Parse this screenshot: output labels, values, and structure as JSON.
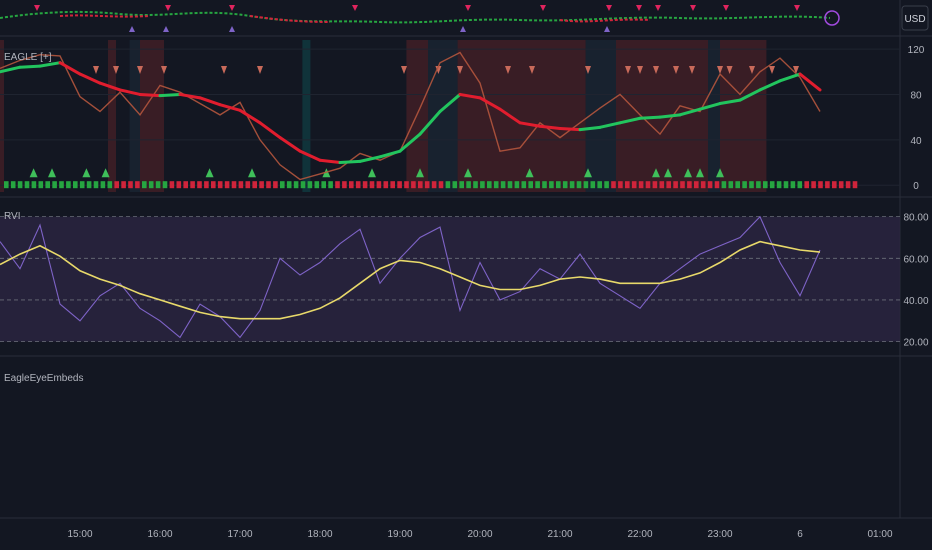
{
  "currency_button": "USD",
  "panes": {
    "eagle_label": "EAGLE [+]",
    "rvi_label": "RVI",
    "embeds_label": "EagleEyeEmbeds"
  },
  "axes": {
    "eagle_ticks": [
      "120",
      "80",
      "40",
      "0"
    ],
    "rvi_ticks": [
      "80.00",
      "60.00",
      "40.00",
      "20.00"
    ],
    "time_ticks": [
      "15:00",
      "16:00",
      "17:00",
      "18:00",
      "19:00",
      "20:00",
      "21:00",
      "22:00",
      "23:00",
      "6",
      "01:00"
    ]
  },
  "colors": {
    "background": "#131722",
    "green_line": "#22c55e",
    "red_line": "#e11d2e",
    "rvi_line": "#e8d96a",
    "rvi_osc": "#7e63c7",
    "rvi_band": "#2a2540",
    "bar_green": "#26a641",
    "bar_red": "#d0243b",
    "shade_red": "#5a2228",
    "shade_dark": "#1d2b3a",
    "shade_teal": "#0f4a4f",
    "marker_salmon": "#c86a5a",
    "marker_green": "#3fbf5a"
  },
  "chart_data": [
    {
      "type": "line",
      "title": "EAGLE [+]",
      "x_unit": "hours (14.5 = 14:30; 24 = day 6 00:00)",
      "ylim": [
        -6,
        128
      ],
      "series": [
        {
          "role": "smooth line, green rising / red falling",
          "x": [
            14.0,
            14.25,
            14.5,
            14.75,
            15.0,
            15.25,
            15.5,
            15.75,
            16.0,
            16.25,
            16.5,
            16.75,
            17.0,
            17.25,
            17.5,
            17.75,
            18.0,
            18.25,
            18.5,
            18.75,
            19.0,
            19.25,
            19.5,
            19.75,
            20.0,
            20.25,
            20.5,
            20.75,
            21.0,
            21.25,
            21.5,
            21.75,
            22.0,
            22.25,
            22.5,
            22.75,
            23.0,
            23.25,
            23.5,
            23.75,
            24.0,
            24.25
          ],
          "y": [
            100,
            104,
            105,
            108,
            98,
            90,
            84,
            80,
            79,
            80,
            77,
            71,
            66,
            55,
            42,
            30,
            22,
            20,
            21,
            25,
            30,
            45,
            65,
            80,
            77,
            67,
            55,
            52,
            50,
            49,
            51,
            55,
            59,
            60,
            62,
            67,
            72,
            75,
            84,
            92,
            98,
            84
          ]
        },
        {
          "role": "thin signal line",
          "x": [
            14.0,
            14.25,
            14.5,
            14.75,
            15.0,
            15.25,
            15.5,
            15.75,
            16.0,
            16.25,
            16.5,
            16.75,
            17.0,
            17.25,
            17.5,
            17.75,
            18.0,
            18.25,
            18.5,
            18.75,
            19.0,
            19.25,
            19.5,
            19.75,
            20.0,
            20.25,
            20.5,
            20.75,
            21.0,
            21.25,
            21.5,
            21.75,
            22.0,
            22.25,
            22.5,
            22.75,
            23.0,
            23.25,
            23.5,
            23.75,
            24.0,
            24.25
          ],
          "y": [
            103,
            110,
            115,
            114,
            78,
            65,
            82,
            62,
            88,
            82,
            72,
            62,
            73,
            40,
            18,
            5,
            10,
            15,
            28,
            22,
            30,
            68,
            108,
            117,
            90,
            30,
            33,
            55,
            42,
            55,
            68,
            80,
            62,
            45,
            70,
            65,
            98,
            80,
            100,
            112,
            95,
            65
          ]
        }
      ],
      "bar_colors_left_to_right": [
        "green",
        "green",
        "green",
        "green",
        "green",
        "green",
        "green",
        "green",
        "green",
        "green",
        "green",
        "green",
        "green",
        "green",
        "green",
        "green",
        "red",
        "red",
        "red",
        "red",
        "green",
        "green",
        "green",
        "green",
        "red",
        "red",
        "red",
        "red",
        "red",
        "red",
        "red",
        "red",
        "red",
        "red",
        "red",
        "red",
        "red",
        "red",
        "red",
        "red",
        "green",
        "green",
        "green",
        "green",
        "green",
        "green",
        "green",
        "green",
        "red",
        "red",
        "red",
        "red",
        "red",
        "red",
        "red",
        "red",
        "red",
        "red",
        "red",
        "red",
        "red",
        "red",
        "red",
        "red",
        "green",
        "green",
        "green",
        "green",
        "green",
        "green",
        "green",
        "green",
        "green",
        "green",
        "green",
        "green",
        "green",
        "green",
        "green",
        "green",
        "green",
        "green",
        "green",
        "green",
        "green",
        "green",
        "green",
        "green",
        "red",
        "red",
        "red",
        "red",
        "red",
        "red",
        "red",
        "red",
        "red",
        "red",
        "red",
        "red",
        "red",
        "red",
        "red",
        "red",
        "green",
        "green",
        "green",
        "green",
        "green",
        "green",
        "green",
        "green",
        "green",
        "green",
        "green",
        "green",
        "red",
        "red",
        "red",
        "red",
        "red",
        "red",
        "red",
        "red"
      ],
      "shaded_spans": [
        {
          "from": 14.0,
          "to": 14.05,
          "color": "red"
        },
        {
          "from": 15.35,
          "to": 15.45,
          "color": "red"
        },
        {
          "from": 15.62,
          "to": 15.75,
          "color": "dark"
        },
        {
          "from": 15.75,
          "to": 16.05,
          "color": "red"
        },
        {
          "from": 17.78,
          "to": 17.88,
          "color": "teal"
        },
        {
          "from": 19.08,
          "to": 19.35,
          "color": "red"
        },
        {
          "from": 19.35,
          "to": 19.72,
          "color": "dark"
        },
        {
          "from": 19.72,
          "to": 21.32,
          "color": "red"
        },
        {
          "from": 21.32,
          "to": 21.7,
          "color": "dark"
        },
        {
          "from": 21.7,
          "to": 22.85,
          "color": "red"
        },
        {
          "from": 22.85,
          "to": 23.0,
          "color": "dark"
        },
        {
          "from": 23.0,
          "to": 23.58,
          "color": "red"
        }
      ],
      "down_markers_x": [
        15.2,
        15.45,
        15.75,
        16.05,
        16.8,
        17.25,
        19.05,
        19.48,
        19.75,
        20.35,
        20.65,
        21.35,
        21.85,
        22.0,
        22.2,
        22.45,
        22.65,
        23.0,
        23.12,
        23.4,
        23.65,
        23.95
      ],
      "up_markers_x": [
        14.42,
        14.65,
        15.08,
        15.32,
        16.62,
        17.15,
        18.08,
        18.65,
        19.25,
        19.85,
        20.62,
        21.35,
        22.2,
        22.35,
        22.6,
        22.75,
        23.0
      ]
    },
    {
      "type": "line",
      "title": "RVI",
      "x_unit": "hours",
      "ylim": [
        15,
        88
      ],
      "band": [
        20,
        80
      ],
      "series": [
        {
          "role": "smooth line",
          "x": [
            14.0,
            14.25,
            14.5,
            14.75,
            15.0,
            15.25,
            15.5,
            15.75,
            16.0,
            16.25,
            16.5,
            16.75,
            17.0,
            17.25,
            17.5,
            17.75,
            18.0,
            18.25,
            18.5,
            18.75,
            19.0,
            19.25,
            19.5,
            19.75,
            20.0,
            20.25,
            20.5,
            20.75,
            21.0,
            21.25,
            21.5,
            21.75,
            22.0,
            22.25,
            22.5,
            22.75,
            23.0,
            23.25,
            23.5,
            23.75,
            24.0,
            24.25
          ],
          "y": [
            57,
            62,
            66,
            61,
            54,
            50,
            47,
            43,
            40,
            37,
            34,
            32,
            31,
            31,
            31,
            33,
            36,
            41,
            48,
            55,
            59,
            58,
            55,
            51,
            47,
            45,
            45,
            47,
            50,
            51,
            50,
            48,
            48,
            48,
            50,
            53,
            58,
            64,
            68,
            66,
            64,
            63
          ]
        },
        {
          "role": "oscillator",
          "x": [
            14.0,
            14.25,
            14.5,
            14.75,
            15.0,
            15.25,
            15.5,
            15.75,
            16.0,
            16.25,
            16.5,
            16.75,
            17.0,
            17.25,
            17.5,
            17.75,
            18.0,
            18.25,
            18.5,
            18.75,
            19.0,
            19.25,
            19.5,
            19.75,
            20.0,
            20.25,
            20.5,
            20.75,
            21.0,
            21.25,
            21.5,
            21.75,
            22.0,
            22.25,
            22.5,
            22.75,
            23.0,
            23.25,
            23.5,
            23.75,
            24.0,
            24.25
          ],
          "y": [
            68,
            55,
            76,
            38,
            30,
            42,
            48,
            36,
            30,
            22,
            38,
            32,
            22,
            35,
            60,
            52,
            58,
            67,
            74,
            48,
            60,
            70,
            75,
            35,
            58,
            40,
            44,
            55,
            50,
            62,
            48,
            42,
            36,
            48,
            55,
            62,
            66,
            70,
            80,
            58,
            42,
            64
          ]
        }
      ]
    }
  ]
}
